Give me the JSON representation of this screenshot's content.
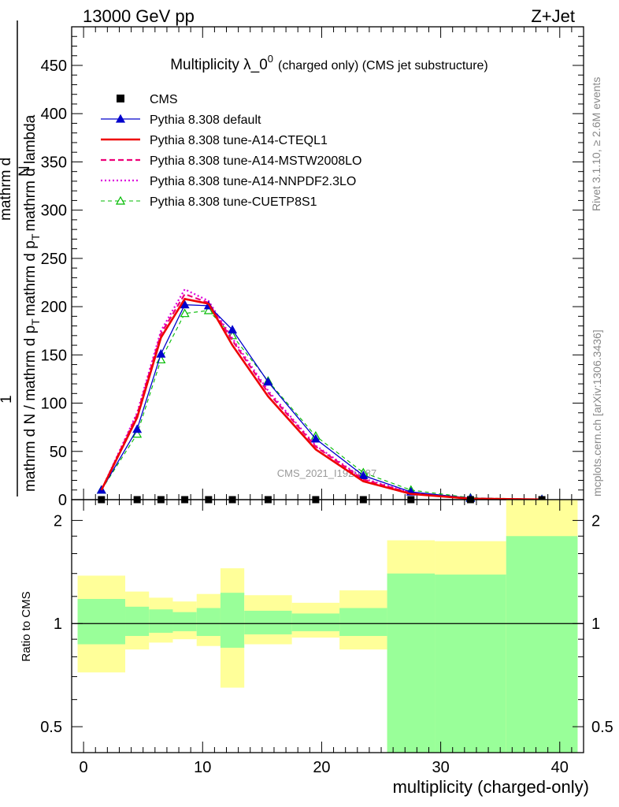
{
  "header": {
    "left": "13000 GeV pp",
    "right": "Z+Jet"
  },
  "side_labels": {
    "rivet": "Rivet 3.1.10, ≥ 2.6M events",
    "mcplots": "mcplots.cern.ch [arXiv:1306.3436]"
  },
  "watermark": "CMS_2021_I1920187",
  "colors": {
    "cms": "#000000",
    "default": "#0000cc",
    "a14_cteql1": "#ee0000",
    "a14_mstw": "#ee0077",
    "a14_nnpdf": "#dd00dd",
    "cuetp8s1": "#00bb00",
    "band_inner": "#99ff99",
    "band_outer": "#ffff99"
  },
  "chart_data": [
    {
      "type": "line",
      "title": "Multiplicity λ_0⁰ (charged only) (CMS jet substructure)",
      "title_main": "Multiplicity λ_0",
      "title_sup": "0",
      "title_tail": "(charged only) (CMS jet substructure)",
      "ylabel_top": "1",
      "ylabel_lines": [
        "mathrm d N / mathrm d p",
        "T",
        "mathrm d p",
        "T",
        "mathrm d lambda"
      ],
      "ylabel_numer": "mathrm d",
      "ylabel_N": "N",
      "xlabel": "multiplicity (charged-only)",
      "xlim": [
        -1,
        42
      ],
      "ylim": [
        0,
        490
      ],
      "y_ticks": [
        0,
        50,
        100,
        150,
        200,
        250,
        300,
        350,
        400,
        450
      ],
      "x": [
        1.5,
        4.5,
        6.5,
        8.5,
        10.5,
        12.5,
        15.5,
        19.5,
        23.5,
        27.5,
        32.5,
        38.5
      ],
      "series": [
        {
          "key": "cms",
          "name": "CMS",
          "style": "marker",
          "values": [
            0,
            0,
            0,
            0,
            0,
            0,
            0,
            0,
            0,
            0,
            0,
            0
          ]
        },
        {
          "key": "default",
          "name": "Pythia 8.308 default",
          "style": "line-tri",
          "values": [
            10,
            73,
            151,
            202,
            201,
            176,
            122,
            63,
            25,
            8,
            1.5,
            0.3
          ]
        },
        {
          "key": "a14_cteql1",
          "name": "Pythia 8.308 tune-A14-CTEQL1",
          "style": "solid",
          "values": [
            10,
            85,
            168,
            208,
            203,
            160,
            107,
            52,
            19,
            6,
            1,
            0.2
          ]
        },
        {
          "key": "a14_mstw",
          "name": "Pythia 8.308 tune-A14-MSTW2008LO",
          "style": "dashed",
          "values": [
            10,
            88,
            172,
            213,
            204,
            165,
            111,
            55,
            21,
            6.5,
            1.1,
            0.2
          ]
        },
        {
          "key": "a14_nnpdf",
          "name": "Pythia 8.308 tune-A14-NNPDF2.3LO",
          "style": "dotted",
          "values": [
            10,
            90,
            175,
            218,
            206,
            167,
            113,
            56,
            22,
            7,
            1.2,
            0.2
          ]
        },
        {
          "key": "cuetp8s1",
          "name": "Pythia 8.308 tune-CUETP8S1",
          "style": "dashed-tri",
          "values": [
            10,
            68,
            145,
            193,
            196,
            170,
            123,
            66,
            28,
            10,
            2,
            0.4
          ]
        }
      ]
    },
    {
      "type": "area",
      "ylabel": "Ratio to CMS",
      "ylim": [
        0.42,
        2.3
      ],
      "y_ticks": [
        0.5,
        1,
        2
      ],
      "x_ticks": [
        0,
        10,
        20,
        30,
        40
      ],
      "bins": [
        {
          "x0": -0.5,
          "x1": 3.5,
          "inner": [
            0.87,
            1.18
          ],
          "outer": [
            0.72,
            1.38
          ]
        },
        {
          "x0": 3.5,
          "x1": 5.5,
          "inner": [
            0.92,
            1.12
          ],
          "outer": [
            0.84,
            1.24
          ]
        },
        {
          "x0": 5.5,
          "x1": 7.5,
          "inner": [
            0.94,
            1.1
          ],
          "outer": [
            0.88,
            1.19
          ]
        },
        {
          "x0": 7.5,
          "x1": 9.5,
          "inner": [
            0.95,
            1.08
          ],
          "outer": [
            0.9,
            1.16
          ]
        },
        {
          "x0": 9.5,
          "x1": 11.5,
          "inner": [
            0.92,
            1.11
          ],
          "outer": [
            0.86,
            1.22
          ]
        },
        {
          "x0": 11.5,
          "x1": 13.5,
          "inner": [
            0.85,
            1.23
          ],
          "outer": [
            0.65,
            1.45
          ]
        },
        {
          "x0": 13.5,
          "x1": 17.5,
          "inner": [
            0.93,
            1.09
          ],
          "outer": [
            0.87,
            1.21
          ]
        },
        {
          "x0": 17.5,
          "x1": 21.5,
          "inner": [
            0.95,
            1.07
          ],
          "outer": [
            0.91,
            1.15
          ]
        },
        {
          "x0": 21.5,
          "x1": 25.5,
          "inner": [
            0.92,
            1.11
          ],
          "outer": [
            0.84,
            1.25
          ]
        },
        {
          "x0": 25.5,
          "x1": 29.5,
          "inner": [
            0.42,
            1.4
          ],
          "outer": [
            0.42,
            1.75
          ]
        },
        {
          "x0": 29.5,
          "x1": 35.5,
          "inner": [
            0.42,
            1.39
          ],
          "outer": [
            0.42,
            1.74
          ]
        },
        {
          "x0": 35.5,
          "x1": 41.5,
          "inner": [
            0.42,
            1.8
          ],
          "outer": [
            0.42,
            2.3
          ]
        }
      ]
    }
  ]
}
